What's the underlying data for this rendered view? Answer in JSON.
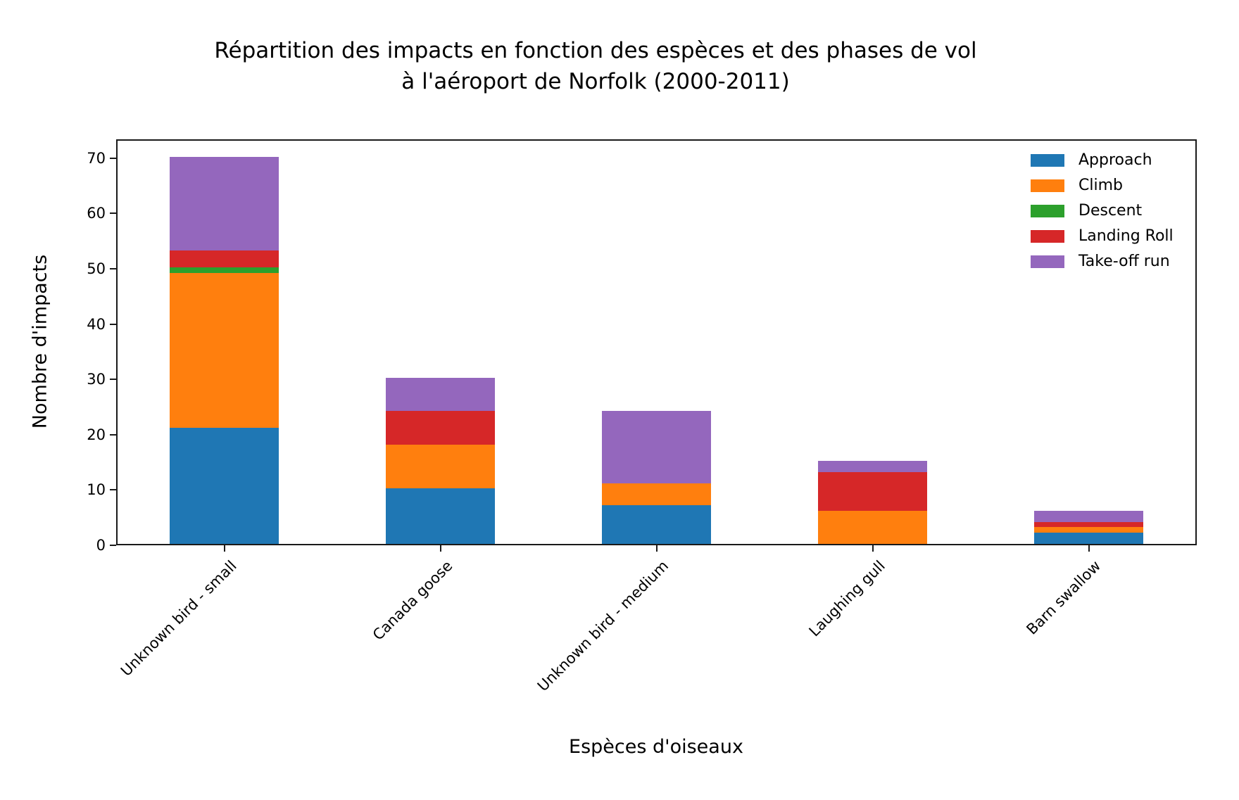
{
  "title": {
    "line1": "Répartition des impacts en fonction des espèces et des phases de vol",
    "line2": "à l'aéroport de Norfolk (2000-2011)"
  },
  "chart_data": {
    "type": "bar",
    "stacked": true,
    "title": "Répartition des impacts en fonction des espèces et des phases de vol à l'aéroport de Norfolk (2000-2011)",
    "xlabel": "Espèces d'oiseaux",
    "ylabel": "Nombre d'impacts",
    "categories": [
      "Unknown bird - small",
      "Canada goose",
      "Unknown bird - medium",
      "Laughing gull",
      "Barn swallow"
    ],
    "series": [
      {
        "name": "Approach",
        "color": "#1f77b4",
        "values": [
          21,
          10,
          7,
          0,
          2
        ]
      },
      {
        "name": "Climb",
        "color": "#ff7f0e",
        "values": [
          28,
          8,
          4,
          6,
          1
        ]
      },
      {
        "name": "Descent",
        "color": "#2ca02c",
        "values": [
          1,
          0,
          0,
          0,
          0
        ]
      },
      {
        "name": "Landing Roll",
        "color": "#d62728",
        "values": [
          3,
          6,
          0,
          7,
          1
        ]
      },
      {
        "name": "Take-off run",
        "color": "#9467bd",
        "values": [
          17,
          6,
          13,
          2,
          2
        ]
      }
    ],
    "stack_totals": [
      70,
      30,
      24,
      15,
      6
    ],
    "yticks": [
      0,
      10,
      20,
      30,
      40,
      50,
      60,
      70
    ],
    "ylim": [
      0,
      73.4
    ],
    "grid": false,
    "legend": {
      "position": "upper right",
      "frame": false,
      "entries": [
        "Approach",
        "Climb",
        "Descent",
        "Landing Roll",
        "Take-off run"
      ]
    }
  }
}
